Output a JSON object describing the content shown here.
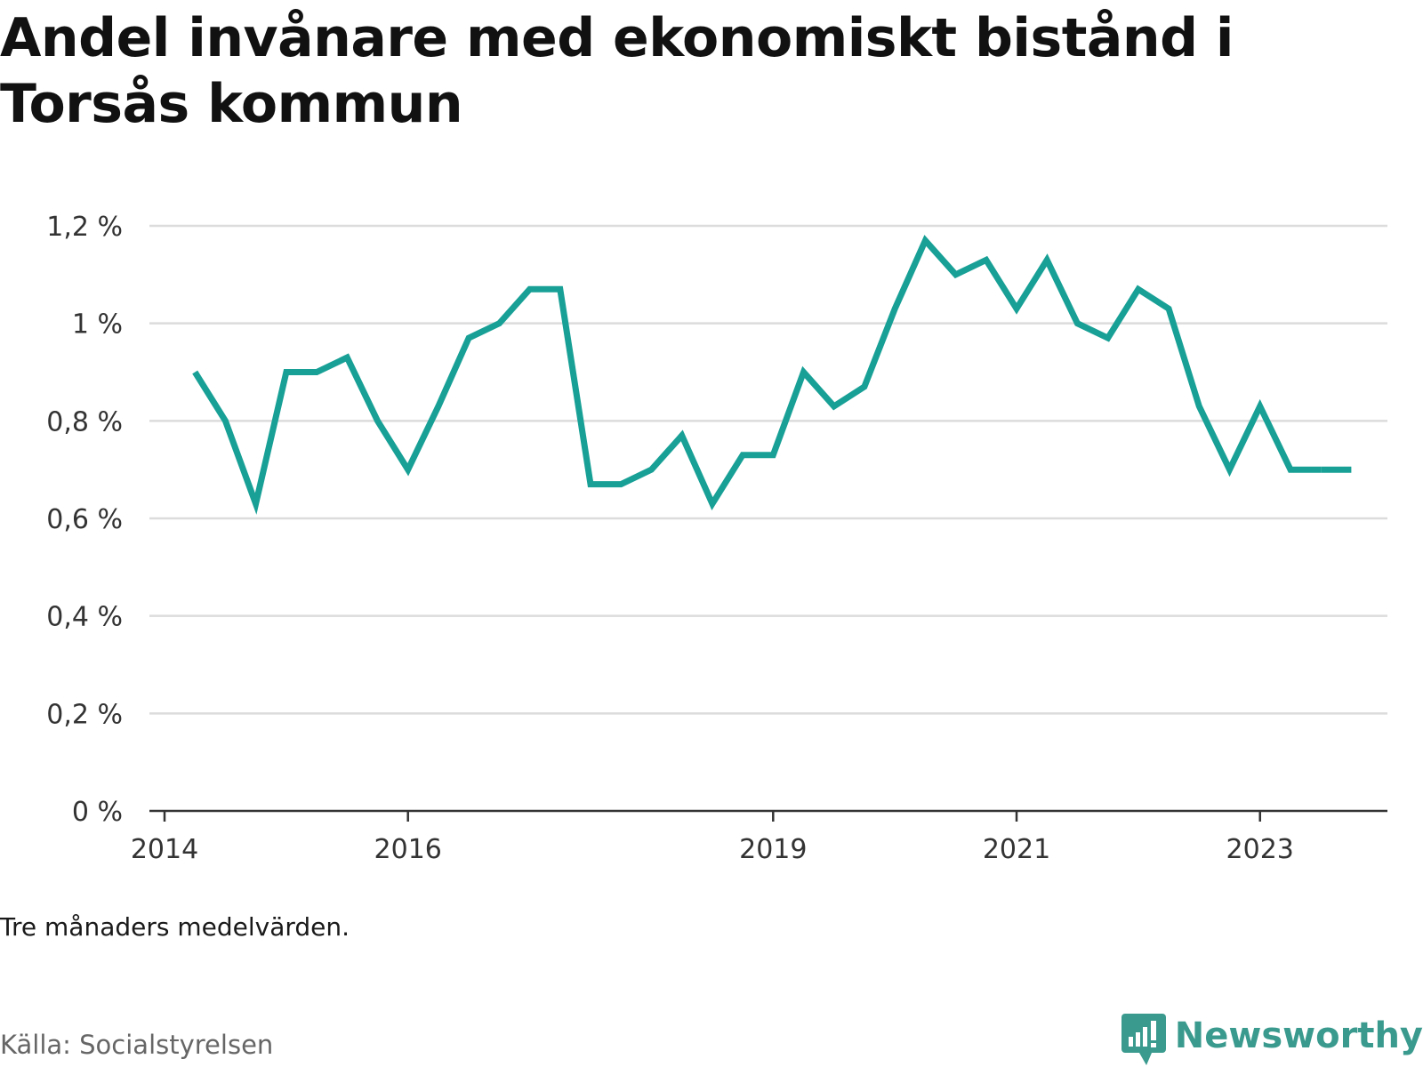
{
  "title": {
    "line1": "Andel invånare med ekonomiskt bistånd i",
    "line2": "Torsås kommun"
  },
  "note": "Tre månaders medelvärden.",
  "source": "Källa: Socialstyrelsen",
  "brand": {
    "name": "Newsworthy",
    "icon": "newsworthy-logo-icon",
    "color": "#3a9a8e"
  },
  "chart_data": {
    "type": "line",
    "title": "Andel invånare med ekonomiskt bistånd i Torsås kommun",
    "xlabel": "",
    "ylabel": "",
    "ylim": [
      0,
      1.2
    ],
    "yticks": [
      {
        "value": 0,
        "label": "0 %"
      },
      {
        "value": 0.2,
        "label": "0,2 %"
      },
      {
        "value": 0.4,
        "label": "0,4 %"
      },
      {
        "value": 0.6,
        "label": "0,6 %"
      },
      {
        "value": 0.8,
        "label": "0,8 %"
      },
      {
        "value": 1.0,
        "label": "1 %"
      },
      {
        "value": 1.2,
        "label": "1,2 %"
      }
    ],
    "xlim": [
      "2014-01",
      "2024-02"
    ],
    "xticks": [
      {
        "value": "2014-01",
        "label": "2014"
      },
      {
        "value": "2016-01",
        "label": "2016"
      },
      {
        "value": "2019-01",
        "label": "2019"
      },
      {
        "value": "2021-01",
        "label": "2021"
      },
      {
        "value": "2023-01",
        "label": "2023"
      }
    ],
    "grid": true,
    "color": "#18a096",
    "series": [
      {
        "x": [
          "2014-04",
          "2014-07",
          "2014-10",
          "2015-01",
          "2015-04",
          "2015-07",
          "2015-10",
          "2016-01",
          "2016-04",
          "2016-07",
          "2016-10",
          "2017-01",
          "2017-04",
          "2017-07",
          "2017-10",
          "2018-01",
          "2018-04",
          "2018-07",
          "2018-10",
          "2019-01",
          "2019-04",
          "2019-07",
          "2019-10",
          "2020-01",
          "2020-04",
          "2020-07",
          "2020-10",
          "2021-01",
          "2021-04",
          "2021-07",
          "2021-10",
          "2022-01",
          "2022-04",
          "2022-07",
          "2022-10",
          "2023-01",
          "2023-04",
          "2023-07"
        ],
        "values": [
          0.9,
          0.8,
          0.63,
          0.9,
          0.9,
          0.93,
          0.8,
          0.7,
          0.83,
          0.97,
          1.0,
          1.07,
          1.07,
          0.67,
          0.67,
          0.7,
          0.77,
          0.63,
          0.73,
          0.73,
          0.9,
          0.83,
          0.87,
          1.03,
          1.17,
          1.1,
          1.13,
          1.03,
          1.13,
          1.0,
          0.97,
          1.07,
          1.03,
          0.83,
          0.7,
          0.83,
          0.7,
          0.7
        ]
      },
      {
        "x": [
          "2023-07",
          "2023-10"
        ],
        "values": [
          0.7,
          0.7
        ]
      }
    ]
  }
}
